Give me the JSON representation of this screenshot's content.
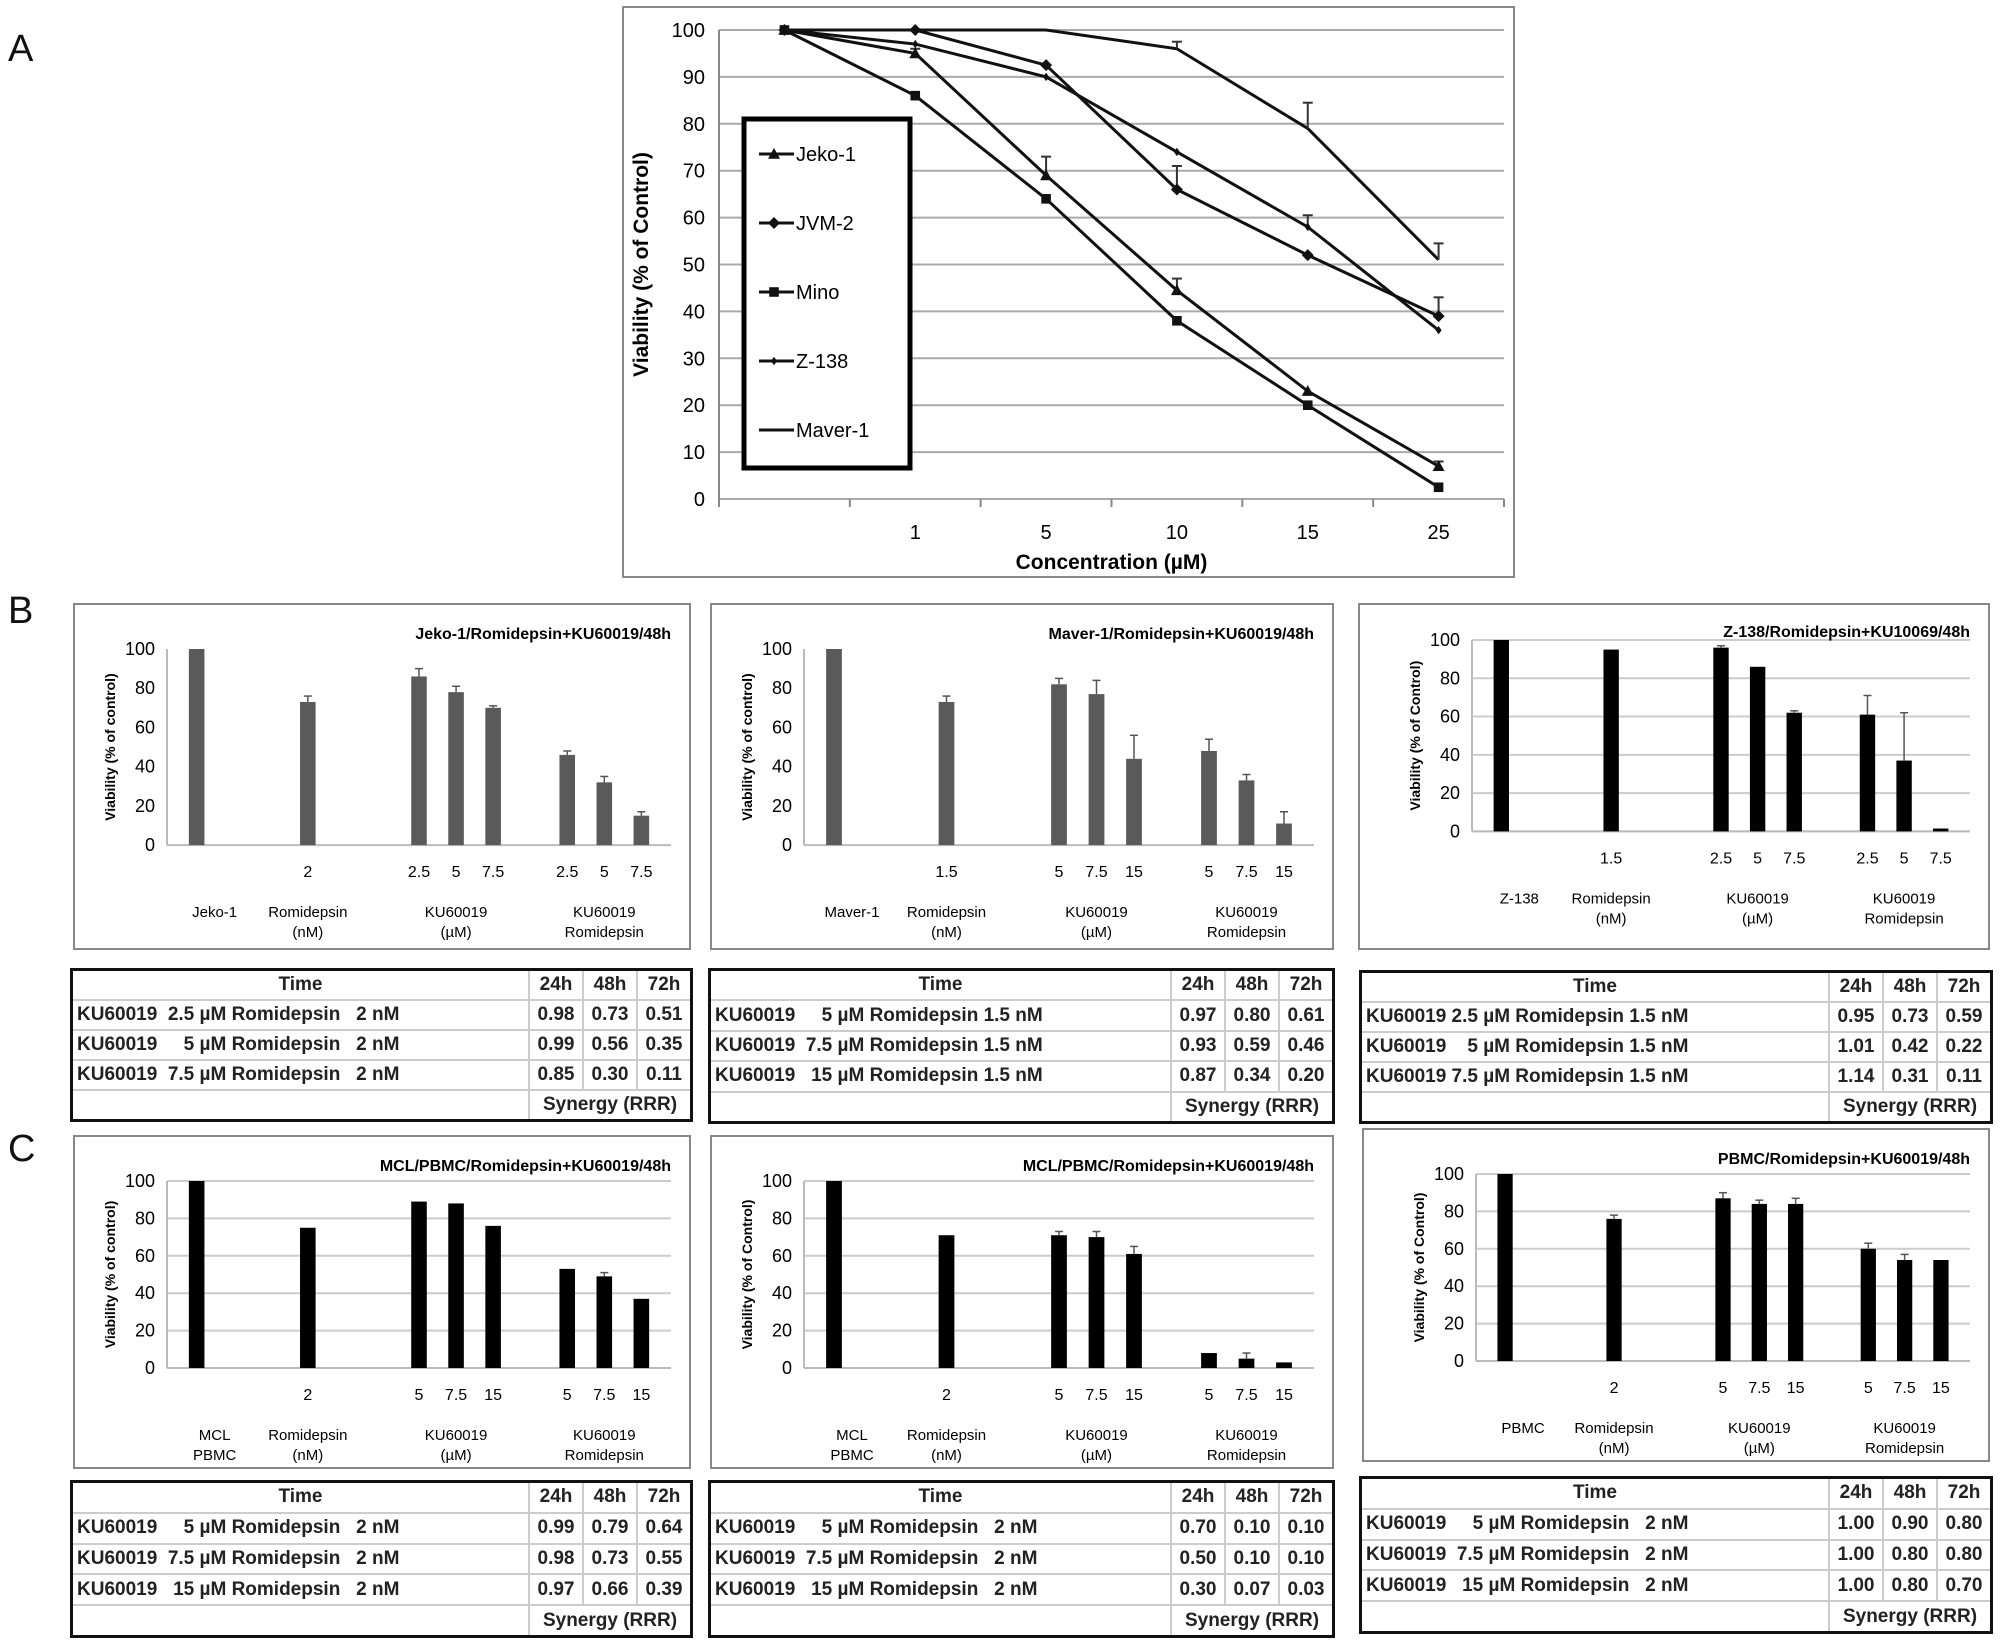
{
  "panels": {
    "a": "A",
    "b": "B",
    "c": "C"
  },
  "chart_data": [
    {
      "type": "line",
      "id": "A",
      "xlabel": "Concentration (µM)",
      "ylabel": "Viability (% of Control)",
      "categories": [
        "",
        "1",
        "5",
        "10",
        "15",
        "25"
      ],
      "ylim": [
        0,
        100
      ],
      "yticks": [
        0,
        10,
        20,
        30,
        40,
        50,
        60,
        70,
        80,
        90,
        100
      ],
      "grid": true,
      "legend": "left",
      "series": [
        {
          "name": "Jeko-1",
          "marker": "triangle",
          "values": [
            100,
            95,
            69,
            44.5,
            23,
            7
          ],
          "err": [
            0,
            1,
            4,
            2.5,
            0,
            1
          ]
        },
        {
          "name": "JVM-2",
          "marker": "diamond",
          "values": [
            100,
            100,
            92.5,
            66,
            52,
            39
          ],
          "err": [
            0,
            0,
            0,
            5,
            0,
            4
          ]
        },
        {
          "name": "Mino",
          "marker": "square",
          "values": [
            100,
            86,
            64,
            38,
            20,
            2.5
          ],
          "err": [
            0,
            0,
            0,
            0,
            0,
            0
          ]
        },
        {
          "name": "Z-138",
          "marker": "smalldiamond",
          "values": [
            100,
            97,
            90,
            74,
            58,
            36
          ],
          "err": [
            0,
            0,
            0,
            0,
            2.5,
            0
          ]
        },
        {
          "name": "Maver-1",
          "marker": "none",
          "values": [
            100,
            100,
            100,
            96,
            79,
            51
          ],
          "err": [
            0,
            0,
            0,
            1.5,
            5.5,
            3.5
          ]
        }
      ]
    },
    {
      "type": "bar",
      "id": "B1",
      "title": "Jeko-1/Romidepsin+KU60019/48h",
      "ylabel": "Viability (% of control)",
      "ylim": [
        0,
        100
      ],
      "yticks": [
        0,
        20,
        40,
        60,
        80,
        100
      ],
      "color": "#5a5a5a",
      "tick_labels": [
        "",
        "2",
        "2.5",
        "5",
        "7.5",
        "2.5",
        "5",
        "7.5"
      ],
      "groups": [
        "Jeko-1",
        "Romidepsin|(nM)",
        "KU60019|(µM)",
        "KU60019|Romidepsin"
      ],
      "values": [
        100,
        73,
        86,
        78,
        70,
        46,
        32,
        15
      ],
      "err": [
        0,
        3,
        4,
        3,
        1,
        2,
        3,
        2
      ]
    },
    {
      "type": "bar",
      "id": "B2",
      "title": "Maver-1/Romidepsin+KU60019/48h",
      "ylabel": "Viability (% of control)",
      "ylim": [
        0,
        100
      ],
      "yticks": [
        0,
        20,
        40,
        60,
        80,
        100
      ],
      "color": "#5a5a5a",
      "tick_labels": [
        "",
        "1.5",
        "5",
        "7.5",
        "15",
        "5",
        "7.5",
        "15"
      ],
      "groups": [
        "Maver-1",
        "Romidepsin|(nM)",
        "KU60019|(µM)",
        "KU60019|Romidepsin"
      ],
      "values": [
        100,
        73,
        82,
        77,
        44,
        48,
        33,
        11
      ],
      "err": [
        0,
        3,
        3,
        7,
        12,
        6,
        3,
        6
      ]
    },
    {
      "type": "bar",
      "id": "B3",
      "title": "Z-138/Romidepsin+KU10069/48h",
      "ylabel": "Viability (% of Control)",
      "ylim": [
        0,
        100
      ],
      "yticks": [
        0,
        20,
        40,
        60,
        80,
        100
      ],
      "color": "#000000",
      "tick_labels": [
        "",
        "1.5",
        "2.5",
        "5",
        "7.5",
        "2.5",
        "5",
        "7.5"
      ],
      "groups": [
        "Z-138",
        "Romidepsin|(nM)",
        "KU60019|(µM)",
        "KU60019|Romidepsin"
      ],
      "values": [
        100,
        95,
        96,
        86,
        62,
        61,
        37,
        1.5
      ],
      "err": [
        0,
        0,
        1,
        0,
        1,
        10,
        25,
        0
      ]
    },
    {
      "type": "bar",
      "id": "C1",
      "title": "MCL/PBMC/Romidepsin+KU60019/48h",
      "ylabel": "Viability (% of control)",
      "ylim": [
        0,
        100
      ],
      "yticks": [
        0,
        20,
        40,
        60,
        80,
        100
      ],
      "color": "#000000",
      "tick_labels": [
        "",
        "2",
        "5",
        "7.5",
        "15",
        "5",
        "7.5",
        "15"
      ],
      "groups": [
        "MCL|PBMC",
        "Romidepsin|(nM)",
        "KU60019|(µM)",
        "KU60019|Romidepsin"
      ],
      "values": [
        100,
        75,
        89,
        88,
        76,
        53,
        49,
        37
      ],
      "err": [
        0,
        0,
        0,
        0,
        0,
        0,
        2,
        0
      ]
    },
    {
      "type": "bar",
      "id": "C2",
      "title": "MCL/PBMC/Romidepsin+KU60019/48h",
      "ylabel": "Viability (% of Control)",
      "ylim": [
        0,
        100
      ],
      "yticks": [
        0,
        20,
        40,
        60,
        80,
        100
      ],
      "color": "#000000",
      "tick_labels": [
        "",
        "2",
        "5",
        "7.5",
        "15",
        "5",
        "7.5",
        "15"
      ],
      "groups": [
        "MCL|PBMC",
        "Romidepsin|(nM)",
        "KU60019|(µM)",
        "KU60019|Romidepsin"
      ],
      "values": [
        100,
        71,
        71,
        70,
        61,
        8,
        5,
        3
      ],
      "err": [
        0,
        0,
        2,
        3,
        4,
        0,
        3,
        0
      ]
    },
    {
      "type": "bar",
      "id": "C3",
      "title": "PBMC/Romidepsin+KU60019/48h",
      "ylabel": "Viability (% of Control)",
      "ylim": [
        0,
        100
      ],
      "yticks": [
        0,
        20,
        40,
        60,
        80,
        100
      ],
      "color": "#000000",
      "tick_labels": [
        "",
        "2",
        "5",
        "7.5",
        "15",
        "5",
        "7.5",
        "15"
      ],
      "groups": [
        "PBMC",
        "Romidepsin|(nM)",
        "KU60019|(µM)",
        "KU60019|Romidepsin"
      ],
      "values": [
        100,
        76,
        87,
        84,
        84,
        60,
        54,
        54
      ],
      "err": [
        0,
        2,
        3,
        2,
        3,
        3,
        3,
        0
      ]
    }
  ],
  "tables": [
    {
      "header": "Time",
      "cols": [
        "24h",
        "48h",
        "72h"
      ],
      "footer": "Synergy (RRR)",
      "rows": [
        {
          "label": "KU60019  2.5 µM Romidepsin   2 nM",
          "v": [
            "0.98",
            "0.73",
            "0.51"
          ]
        },
        {
          "label": "KU60019     5 µM Romidepsin   2 nM",
          "v": [
            "0.99",
            "0.56",
            "0.35"
          ]
        },
        {
          "label": "KU60019  7.5 µM Romidepsin   2 nM",
          "v": [
            "0.85",
            "0.30",
            "0.11"
          ]
        }
      ]
    },
    {
      "header": "Time",
      "cols": [
        "24h",
        "48h",
        "72h"
      ],
      "footer": "Synergy (RRR)",
      "rows": [
        {
          "label": "KU60019     5 µM Romidepsin 1.5 nM",
          "v": [
            "0.97",
            "0.80",
            "0.61"
          ]
        },
        {
          "label": "KU60019  7.5 µM Romidepsin 1.5 nM",
          "v": [
            "0.93",
            "0.59",
            "0.46"
          ]
        },
        {
          "label": "KU60019   15 µM Romidepsin 1.5 nM",
          "v": [
            "0.87",
            "0.34",
            "0.20"
          ]
        }
      ]
    },
    {
      "header": "Time",
      "cols": [
        "24h",
        "48h",
        "72h"
      ],
      "footer": "Synergy (RRR)",
      "rows": [
        {
          "label": "KU60019 2.5 µM Romidepsin 1.5 nM",
          "v": [
            "0.95",
            "0.73",
            "0.59"
          ]
        },
        {
          "label": "KU60019    5 µM Romidepsin 1.5 nM",
          "v": [
            "1.01",
            "0.42",
            "0.22"
          ]
        },
        {
          "label": "KU60019 7.5 µM Romidepsin 1.5 nM",
          "v": [
            "1.14",
            "0.31",
            "0.11"
          ]
        }
      ]
    },
    {
      "header": "Time",
      "cols": [
        "24h",
        "48h",
        "72h"
      ],
      "footer": "Synergy (RRR)",
      "rows": [
        {
          "label": "KU60019     5 µM Romidepsin   2 nM",
          "v": [
            "0.99",
            "0.79",
            "0.64"
          ]
        },
        {
          "label": "KU60019  7.5 µM Romidepsin   2 nM",
          "v": [
            "0.98",
            "0.73",
            "0.55"
          ]
        },
        {
          "label": "KU60019   15 µM Romidepsin   2 nM",
          "v": [
            "0.97",
            "0.66",
            "0.39"
          ]
        }
      ]
    },
    {
      "header": "Time",
      "cols": [
        "24h",
        "48h",
        "72h"
      ],
      "footer": "Synergy (RRR)",
      "rows": [
        {
          "label": "KU60019     5 µM Romidepsin   2 nM",
          "v": [
            "0.70",
            "0.10",
            "0.10"
          ]
        },
        {
          "label": "KU60019  7.5 µM Romidepsin   2 nM",
          "v": [
            "0.50",
            "0.10",
            "0.10"
          ]
        },
        {
          "label": "KU60019   15 µM Romidepsin   2 nM",
          "v": [
            "0.30",
            "0.07",
            "0.03"
          ]
        }
      ]
    },
    {
      "header": "Time",
      "cols": [
        "24h",
        "48h",
        "72h"
      ],
      "footer": "Synergy (RRR)",
      "rows": [
        {
          "label": "KU60019     5 µM Romidepsin   2 nM",
          "v": [
            "1.00",
            "0.90",
            "0.80"
          ]
        },
        {
          "label": "KU60019  7.5 µM Romidepsin   2 nM",
          "v": [
            "1.00",
            "0.80",
            "0.80"
          ]
        },
        {
          "label": "KU60019   15 µM Romidepsin   2 nM",
          "v": [
            "1.00",
            "0.80",
            "0.70"
          ]
        }
      ]
    }
  ]
}
